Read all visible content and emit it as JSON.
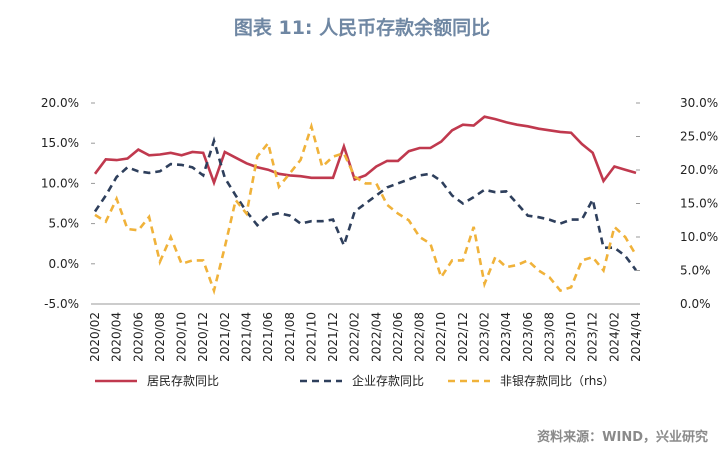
{
  "chart_data": {
    "type": "line",
    "title": "图表 11: 人民币存款余额同比",
    "source": "资料来源：WIND，兴业研究",
    "categories": [
      "2020/02",
      null,
      "2020/04",
      null,
      "2020/06",
      null,
      "2020/08",
      null,
      "2020/10",
      null,
      "2020/12",
      null,
      "2021/02",
      null,
      "2021/04",
      null,
      "2021/06",
      null,
      "2021/08",
      null,
      "2021/10",
      null,
      "2021/12",
      null,
      "2022/02",
      null,
      "2022/04",
      null,
      "2022/06",
      null,
      "2022/08",
      null,
      "2022/10",
      null,
      "2022/12",
      null,
      "2023/02",
      null,
      "2023/04",
      null,
      "2023/06",
      null,
      "2023/08",
      null,
      "2023/10",
      null,
      "2023/12",
      null,
      "2024/02",
      null,
      "2024/04"
    ],
    "series": [
      {
        "name": "居民存款同比",
        "color": "#c0394e",
        "dash": "solid",
        "axis": "y",
        "values": [
          11.2,
          13.0,
          12.9,
          13.1,
          14.2,
          13.5,
          13.6,
          13.8,
          13.5,
          13.9,
          13.8,
          10.1,
          13.9,
          13.2,
          12.5,
          12.0,
          11.7,
          11.2,
          11.0,
          10.9,
          10.7,
          10.7,
          10.7,
          14.6,
          10.5,
          11.0,
          12.1,
          12.8,
          12.8,
          14.0,
          14.4,
          14.4,
          15.2,
          16.6,
          17.3,
          17.2,
          18.3,
          18.0,
          17.6,
          17.3,
          17.1,
          16.8,
          16.6,
          16.4,
          16.3,
          14.9,
          13.8,
          10.3,
          12.1,
          11.7,
          11.3
        ]
      },
      {
        "name": "企业存款同比",
        "color": "#2e3f5c",
        "dash": "dashed",
        "axis": "y",
        "values": [
          6.5,
          8.5,
          10.8,
          12.0,
          11.5,
          11.3,
          11.5,
          12.4,
          12.3,
          12.0,
          11.0,
          15.3,
          10.7,
          8.5,
          6.5,
          4.8,
          6.0,
          6.3,
          6.0,
          5.0,
          5.3,
          5.3,
          5.5,
          2.3,
          6.5,
          7.5,
          8.5,
          9.5,
          10.0,
          10.5,
          11.0,
          11.2,
          10.3,
          8.5,
          7.5,
          8.3,
          9.2,
          8.9,
          9.0,
          7.5,
          6.0,
          5.8,
          5.5,
          5.0,
          5.5,
          5.5,
          8.0,
          2.0,
          2.0,
          1.0,
          -0.8
        ]
      },
      {
        "name": "非银存款同比（rhs）",
        "color": "#f0b23a",
        "dash": "dashed",
        "axis": "y2",
        "values": [
          13.3,
          12.3,
          15.7,
          11.2,
          11.0,
          13.0,
          6.3,
          10.0,
          6.0,
          6.5,
          6.5,
          2.0,
          8.5,
          15.5,
          13.5,
          22.0,
          24.0,
          17.5,
          19.5,
          21.5,
          26.5,
          20.5,
          22.0,
          22.5,
          19.0,
          18.0,
          18.0,
          14.8,
          13.5,
          12.5,
          10.0,
          9.0,
          4.0,
          6.5,
          6.5,
          11.5,
          3.0,
          7.0,
          5.5,
          5.8,
          6.5,
          5.0,
          4.0,
          2.0,
          2.5,
          6.5,
          7.0,
          5.0,
          11.5,
          10.0,
          7.3
        ]
      }
    ],
    "ylim": [
      -5,
      20
    ],
    "yticks": [
      {
        "value": -5,
        "label": "-5.0%"
      },
      {
        "value": 0,
        "label": "0.0%"
      },
      {
        "value": 5,
        "label": "5.0%"
      },
      {
        "value": 10,
        "label": "10.0%"
      },
      {
        "value": 15,
        "label": "15.0%"
      },
      {
        "value": 20,
        "label": "20.0%"
      }
    ],
    "y2lim": [
      0,
      30
    ],
    "y2ticks": [
      {
        "value": 0,
        "label": "0.0%"
      },
      {
        "value": 5,
        "label": "5.0%"
      },
      {
        "value": 10,
        "label": "10.0%"
      },
      {
        "value": 15,
        "label": "15.0%"
      },
      {
        "value": 20,
        "label": "20.0%"
      },
      {
        "value": 25,
        "label": "25.0%"
      },
      {
        "value": 30,
        "label": "30.0%"
      }
    ],
    "grid": false
  }
}
